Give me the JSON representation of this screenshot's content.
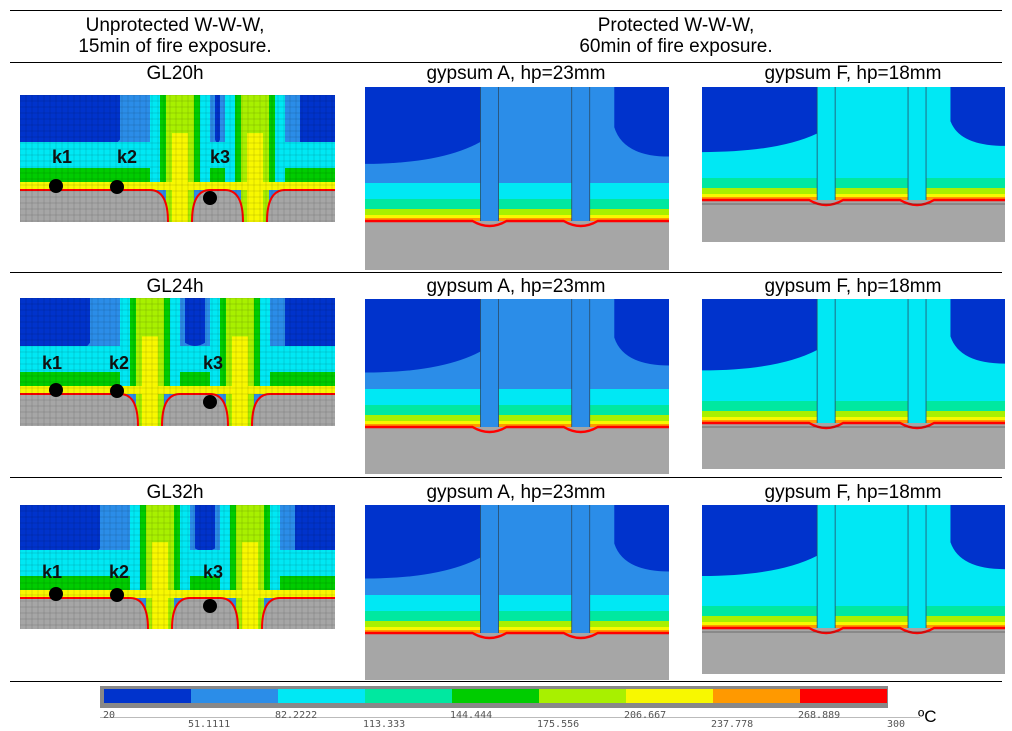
{
  "header": {
    "left_line1": "Unprotected W-W-W,",
    "left_line2": "15min of fire exposure.",
    "right_line1": "Protected W-W-W,",
    "right_line2": "60min of fire exposure."
  },
  "rows": [
    {
      "label": "GL20h",
      "gypsum_a": "gypsum A, hp=23mm",
      "gypsum_f": "gypsum F, hp=18mm",
      "points": [
        "k1",
        "k2",
        "k3"
      ]
    },
    {
      "label": "GL24h",
      "gypsum_a": "gypsum A, hp=23mm",
      "gypsum_f": "gypsum F, hp=18mm",
      "points": [
        "k1",
        "k2",
        "k3"
      ]
    },
    {
      "label": "GL32h",
      "gypsum_a": "gypsum A, hp=23mm",
      "gypsum_f": "gypsum F, hp=18mm",
      "points": [
        "k1",
        "k2",
        "k3"
      ]
    }
  ],
  "legend": {
    "ticks": [
      "20",
      "51.1111",
      "82.2222",
      "113.333",
      "144.444",
      "175.556",
      "206.667",
      "237.778",
      "268.889",
      "300"
    ],
    "unit": "ºC",
    "colors": [
      "#0033cc",
      "#2b8de8",
      "#00e8f4",
      "#00e8a0",
      "#00cc00",
      "#a8f000",
      "#f8f800",
      "#ff9900",
      "#ff0000"
    ],
    "char_color": "#a6a6a6"
  }
}
